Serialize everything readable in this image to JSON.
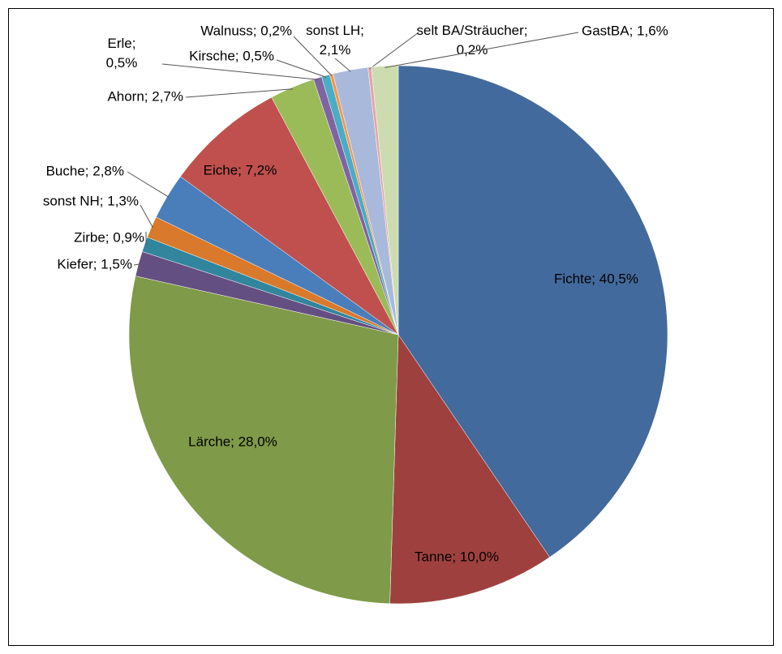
{
  "chart_data": {
    "type": "pie",
    "categories": [
      "Fichte",
      "Tanne",
      "Lärche",
      "Kiefer",
      "Zirbe",
      "sonst NH",
      "Buche",
      "Eiche",
      "Ahorn",
      "Erle",
      "Kirsche",
      "Walnuss",
      "sonst LH",
      "selt BA/Sträucher",
      "GastBA"
    ],
    "values": [
      40.5,
      10.0,
      28.0,
      1.5,
      0.9,
      1.3,
      2.8,
      7.2,
      2.7,
      0.5,
      0.5,
      0.2,
      2.1,
      0.2,
      1.6
    ],
    "value_labels": [
      "Fichte; 40,5%",
      "Tanne; 10,0%",
      "Lärche; 28,0%",
      "Kiefer; 1,5%",
      "Zirbe; 0,9%",
      "sonst NH; 1,3%",
      "Buche; 2,8%",
      "Eiche; 7,2%",
      "Ahorn; 2,7%",
      "Erle;\n0,5%",
      "Kirsche; 0,5%",
      "Walnuss; 0,2%",
      "sonst LH;\n2,1%",
      "selt BA/Sträucher;\n0,2%",
      "GastBA; 1,6%"
    ],
    "colors": [
      "#426a9c",
      "#9e413e",
      "#7f9a48",
      "#644f82",
      "#31859c",
      "#d9792b",
      "#4a7ebb",
      "#c0504d",
      "#9bbb59",
      "#8064a2",
      "#4bacc6",
      "#f79646",
      "#a9b9db",
      "#e6a4a3",
      "#ccdcb0"
    ]
  }
}
